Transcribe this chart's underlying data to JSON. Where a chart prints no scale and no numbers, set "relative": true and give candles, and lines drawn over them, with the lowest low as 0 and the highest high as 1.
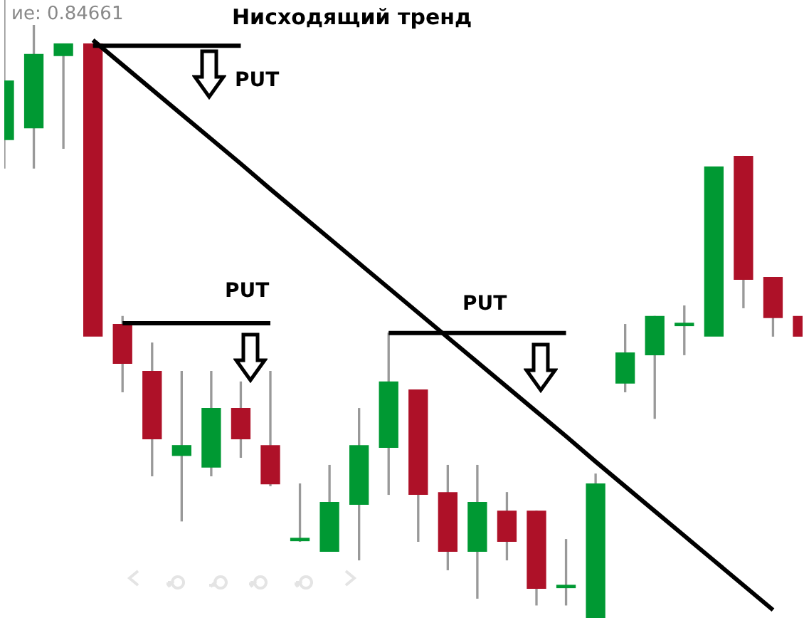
{
  "chart_data": {
    "type": "candlestick",
    "title": "Нисходящий тренд",
    "relative": true,
    "categories": [
      null,
      null,
      null,
      null,
      null,
      null,
      null,
      null,
      null,
      null,
      null,
      null,
      null,
      null,
      null,
      null,
      null,
      null,
      null,
      null,
      null,
      null,
      null,
      null,
      null,
      null,
      null,
      null
    ],
    "ohlc": [
      [
        0.774,
        1,
        0.728,
        0.869
      ],
      [
        0.793,
        0.959,
        0.728,
        0.912
      ],
      [
        0.91,
        0.929,
        0.76,
        0.929
      ],
      [
        0.929,
        0.929,
        0.456,
        0.456
      ],
      [
        0.475,
        0.488,
        0.366,
        0.412
      ],
      [
        0.399,
        0.445,
        0.23,
        0.29
      ],
      [
        0.263,
        0.399,
        0.157,
        0.279
      ],
      [
        0.244,
        0.399,
        0.23,
        0.339
      ],
      [
        0.339,
        0.382,
        0.26,
        0.29
      ],
      [
        0.279,
        0.399,
        0.214,
        0.217
      ],
      [
        0.125,
        0.217,
        0.124,
        0.129
      ],
      [
        0.108,
        0.247,
        0.108,
        0.187
      ],
      [
        0.184,
        0.339,
        0.094,
        0.279
      ],
      [
        0.276,
        0.461,
        0.2,
        0.382
      ],
      [
        0.369,
        0.369,
        0.124,
        0.2
      ],
      [
        0.203,
        0.247,
        0.078,
        0.108
      ],
      [
        0.108,
        0.247,
        0.032,
        0.187
      ],
      [
        0.173,
        0.203,
        0.094,
        0.124
      ],
      [
        0.173,
        0.173,
        0.021,
        0.048
      ],
      [
        0.049,
        0.127,
        0.021,
        0.053
      ],
      [
        0,
        0.233,
        0,
        0.217
      ],
      [
        0.38,
        0.475,
        0.366,
        0.429
      ],
      [
        0.426,
        0.488,
        0.323,
        0.488
      ],
      [
        0.473,
        0.505,
        0.426,
        0.477
      ],
      [
        0.456,
        0.73,
        0.456,
        0.73
      ],
      [
        0.747,
        0.747,
        0.502,
        0.548
      ],
      [
        0.551,
        0.551,
        0.456,
        0.486
      ],
      [
        0.488,
        0.488,
        0.456,
        0.456
      ]
    ],
    "colors": [
      "#009933",
      "#009933",
      "#009933",
      "#ae1128",
      "#ae1128",
      "#ae1128",
      "#009933",
      "#009933",
      "#ae1128",
      "#ae1128",
      "#009933",
      "#009933",
      "#009933",
      "#009933",
      "#ae1128",
      "#ae1128",
      "#009933",
      "#ae1128",
      "#ae1128",
      "#009933",
      "#009933",
      "#009933",
      "#009933",
      "#009933",
      "#009933",
      "#ae1128",
      "#ae1128",
      "#ae1128"
    ],
    "series": [
      {
        "type": "line",
        "color": "#000000",
        "values": [
          null,
          null,
          null,
          0.935,
          0.895,
          0.855,
          0.815,
          0.775,
          0.735,
          0.694,
          0.654,
          0.614,
          0.574,
          0.534,
          0.494,
          0.454,
          0.414,
          0.374,
          0.334,
          0.294,
          0.253,
          0.213,
          0.173,
          0.133,
          0.093,
          0.053,
          0.013,
          null
        ]
      },
      {
        "type": "line",
        "color": "#000000",
        "values": [
          null,
          null,
          null,
          0.926,
          0.926,
          0.926,
          0.926,
          0.926,
          0.926,
          null,
          null,
          null,
          null,
          null,
          null,
          null,
          null,
          null,
          null,
          null,
          null,
          null,
          null,
          null,
          null,
          null,
          null,
          null
        ]
      },
      {
        "type": "line",
        "color": "#000000",
        "values": [
          null,
          null,
          null,
          null,
          0.477,
          0.477,
          0.477,
          0.477,
          0.477,
          0.477,
          null,
          null,
          null,
          null,
          null,
          null,
          null,
          null,
          null,
          null,
          null,
          null,
          null,
          null,
          null,
          null,
          null,
          null
        ]
      },
      {
        "type": "line",
        "color": "#000000",
        "values": [
          null,
          null,
          null,
          null,
          null,
          null,
          null,
          null,
          null,
          null,
          null,
          null,
          null,
          0.461,
          0.461,
          0.461,
          0.461,
          0.461,
          0.461,
          0.461,
          null,
          null,
          null,
          null,
          null,
          null,
          null,
          null
        ]
      }
    ],
    "annotations": [
      "ие: 0.84661",
      "PUT",
      "PUT",
      "PUT"
    ]
  }
}
